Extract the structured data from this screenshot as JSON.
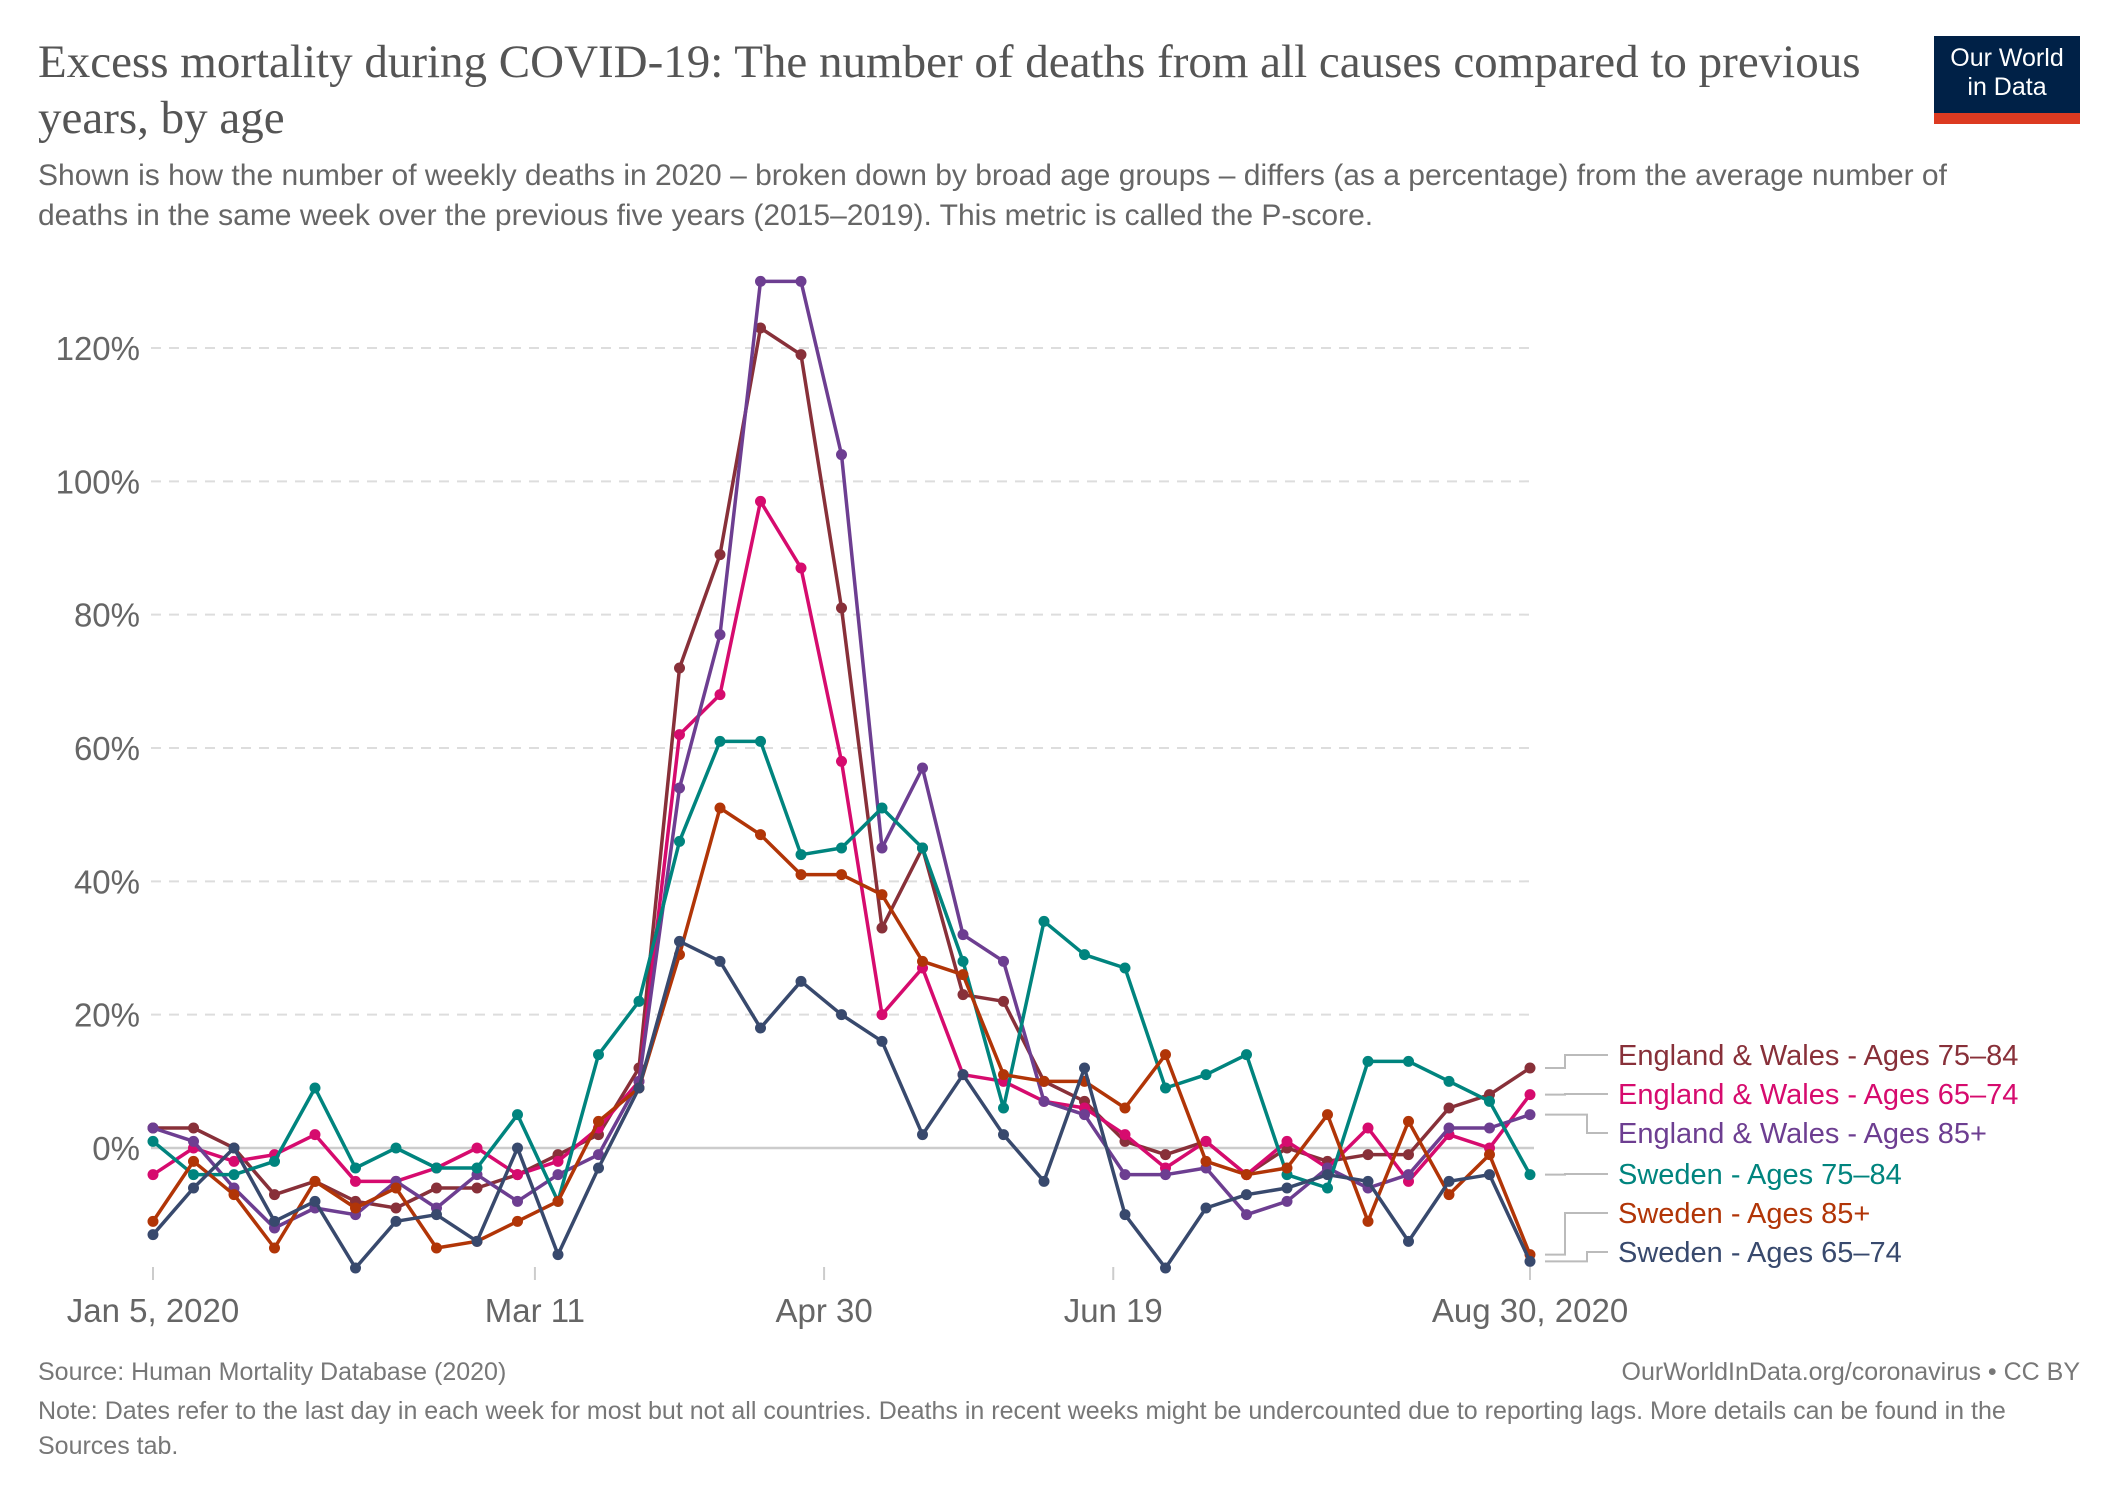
{
  "header": {
    "title": "Excess mortality during COVID-19: The number of deaths from all causes compared to previous years, by age",
    "subtitle": "Shown is how the number of weekly deaths in 2020 – broken down by broad age groups – differs (as a percentage) from the average number of deaths in the same week over the previous five years (2015–2019). This metric is called the P-score.",
    "logo_line1": "Our World",
    "logo_line2": "in Data"
  },
  "colors": {
    "logo_bg": "#002147",
    "logo_bar": "#dc3a21"
  },
  "footer": {
    "source": "Source: Human Mortality Database (2020)",
    "url": "OurWorldInData.org/coronavirus • CC BY",
    "note": "Note: Dates refer to the last day in each week for most but not all countries. Deaths in recent weeks might be undercounted due to reporting lags. More details can be found in the Sources tab."
  },
  "chart_data": {
    "type": "line",
    "title": "Excess mortality during COVID-19: The number of deaths from all causes compared to previous years, by age",
    "xlabel": "",
    "ylabel": "",
    "x_start": "2020-01-05",
    "x_step_days": 7,
    "x_count": 35,
    "x_ticks": [
      {
        "label": "Jan 5, 2020",
        "week": 0
      },
      {
        "label": "Mar 11",
        "week": 9.43
      },
      {
        "label": "Apr 30",
        "week": 16.57
      },
      {
        "label": "Jun 19",
        "week": 23.71
      },
      {
        "label": "Aug 30, 2020",
        "week": 34
      }
    ],
    "ylim": [
      -18,
      130
    ],
    "y_ticks": [
      {
        "label": "0%",
        "value": 0
      },
      {
        "label": "20%",
        "value": 20
      },
      {
        "label": "40%",
        "value": 40
      },
      {
        "label": "60%",
        "value": 60
      },
      {
        "label": "80%",
        "value": 80
      },
      {
        "label": "100%",
        "value": 100
      },
      {
        "label": "120%",
        "value": 120
      }
    ],
    "grid": true,
    "legend_position": "right",
    "series": [
      {
        "name": "England & Wales - Ages 75–84",
        "color": "#883039",
        "values": [
          3,
          3,
          0,
          -7,
          -5,
          -8,
          -9,
          -6,
          -6,
          -4,
          -1,
          2,
          12,
          72,
          89,
          123,
          119,
          81,
          33,
          45,
          23,
          22,
          10,
          7,
          1,
          -1,
          1,
          -4,
          0,
          -2,
          -1,
          -1,
          6,
          8,
          12
        ]
      },
      {
        "name": "England & Wales - Ages 65–74",
        "color": "#d60b6e",
        "values": [
          -4,
          0,
          -2,
          -1,
          2,
          -5,
          -5,
          -3,
          0,
          -4,
          -2,
          3,
          10,
          62,
          68,
          97,
          87,
          58,
          20,
          27,
          11,
          10,
          7,
          6,
          2,
          -3,
          1,
          -4,
          1,
          -3,
          3,
          -5,
          2,
          0,
          8
        ]
      },
      {
        "name": "England & Wales - Ages 85+",
        "color": "#6d3e91",
        "values": [
          3,
          1,
          -6,
          -12,
          -9,
          -10,
          -5,
          -9,
          -4,
          -8,
          -4,
          -1,
          10,
          54,
          77,
          130,
          130,
          104,
          45,
          57,
          32,
          28,
          7,
          5,
          -4,
          -4,
          -3,
          -10,
          -8,
          -3,
          -6,
          -4,
          3,
          3,
          5
        ]
      },
      {
        "name": "Sweden - Ages 75–84",
        "color": "#00847e",
        "values": [
          1,
          -4,
          -4,
          -2,
          9,
          -3,
          0,
          -3,
          -3,
          5,
          -8,
          14,
          22,
          46,
          61,
          61,
          44,
          45,
          51,
          45,
          28,
          6,
          34,
          29,
          27,
          9,
          11,
          14,
          -4,
          -6,
          13,
          13,
          10,
          7,
          -4
        ]
      },
      {
        "name": "Sweden - Ages 85+",
        "color": "#b13507",
        "values": [
          -11,
          -2,
          -7,
          -15,
          -5,
          -9,
          -6,
          -15,
          -14,
          -11,
          -8,
          4,
          9,
          29,
          51,
          47,
          41,
          41,
          38,
          28,
          26,
          11,
          10,
          10,
          6,
          14,
          -2,
          -4,
          -3,
          5,
          -11,
          4,
          -7,
          -1,
          -16
        ]
      },
      {
        "name": "Sweden - Ages 65–74",
        "color": "#38496d",
        "values": [
          -13,
          -6,
          0,
          -11,
          -8,
          -18,
          -11,
          -10,
          -14,
          0,
          -16,
          -3,
          9,
          31,
          28,
          18,
          25,
          20,
          16,
          2,
          11,
          2,
          -5,
          12,
          -10,
          -18,
          -9,
          -7,
          -6,
          -4,
          -5,
          -14,
          -5,
          -4,
          -17
        ]
      }
    ],
    "legend_order": [
      0,
      1,
      2,
      3,
      4,
      5
    ]
  }
}
